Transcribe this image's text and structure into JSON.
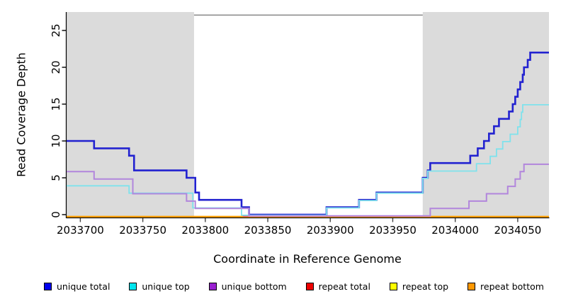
{
  "figure": {
    "y_axis_title": "Read Coverage Depth",
    "x_axis_title": "Coordinate in Reference Genome"
  },
  "chart_data": {
    "type": "line",
    "step": true,
    "title": "",
    "xlabel": "Coordinate in Reference Genome",
    "ylabel": "Read Coverage Depth",
    "x_range": [
      2033689,
      2034075
    ],
    "y_range": [
      0,
      27.5
    ],
    "x_ticks": [
      2033700,
      2033750,
      2033800,
      2033850,
      2033900,
      2033950,
      2034000,
      2034050
    ],
    "y_ticks": [
      0,
      5,
      10,
      15,
      20,
      25
    ],
    "grid": false,
    "legend_position": "bottom",
    "shaded_regions": [
      {
        "name": "left-shaded-region",
        "from": 2033689,
        "to": 2033791,
        "color": "#DBDBDB"
      },
      {
        "name": "right-shaded-region",
        "from": 2033974,
        "to": 2034075,
        "color": "#DBDBDB"
      }
    ],
    "top_border": {
      "from": 2033791,
      "to": 2033974,
      "color": "#8F8F8F"
    },
    "series": [
      {
        "name": "repeat top",
        "line_color": "#FFE800",
        "width": 1.8,
        "offset": 2.8,
        "extend": true,
        "points": [
          [
            2033689,
            0
          ],
          [
            2034075,
            0
          ]
        ]
      },
      {
        "name": "repeat bottom",
        "line_color": "#FF9802",
        "width": 2.2,
        "offset": 2.8,
        "extend": true,
        "points": [
          [
            2033689,
            0
          ],
          [
            2034075,
            0
          ]
        ]
      },
      {
        "name": "repeat total",
        "line_color": "#D44E78",
        "width": 1.8,
        "offset": 2.1,
        "extend": false,
        "points": [
          [
            2033830,
            0
          ],
          [
            2033980,
            0
          ]
        ]
      },
      {
        "name": "unique total",
        "line_color": "#2222D0",
        "width": 2.6,
        "offset": 0,
        "extend": true,
        "points": [
          [
            2033689,
            10
          ],
          [
            2033711,
            9
          ],
          [
            2033739,
            8
          ],
          [
            2033743,
            6
          ],
          [
            2033785,
            5
          ],
          [
            2033792,
            3
          ],
          [
            2033795,
            2
          ],
          [
            2033829,
            1
          ],
          [
            2033835,
            0
          ],
          [
            2033897,
            1
          ],
          [
            2033923,
            2
          ],
          [
            2033937,
            3
          ],
          [
            2033974,
            5
          ],
          [
            2033978,
            6
          ],
          [
            2033980,
            7
          ],
          [
            2034012,
            8
          ],
          [
            2034018,
            9
          ],
          [
            2034023,
            10
          ],
          [
            2034027,
            11
          ],
          [
            2034031,
            12
          ],
          [
            2034035,
            13
          ],
          [
            2034043,
            14
          ],
          [
            2034046,
            15
          ],
          [
            2034048,
            16
          ],
          [
            2034050,
            17
          ],
          [
            2034052,
            18
          ],
          [
            2034054,
            19
          ],
          [
            2034055,
            20
          ],
          [
            2034058,
            21
          ],
          [
            2034060,
            22
          ]
        ]
      },
      {
        "name": "unique top",
        "line_color": "#7FE2EC",
        "width": 1.8,
        "offset": 0.9,
        "extend": true,
        "points": [
          [
            2033689,
            4
          ],
          [
            2033739,
            3
          ],
          [
            2033790,
            1
          ],
          [
            2033829,
            0
          ],
          [
            2033897,
            1
          ],
          [
            2033923,
            2
          ],
          [
            2033937,
            3
          ],
          [
            2033974,
            5
          ],
          [
            2033978,
            6
          ],
          [
            2034017,
            7
          ],
          [
            2034028,
            8
          ],
          [
            2034033,
            9
          ],
          [
            2034038,
            10
          ],
          [
            2034044,
            11
          ],
          [
            2034050,
            12
          ],
          [
            2034052,
            13
          ],
          [
            2034053,
            14
          ],
          [
            2034054,
            15
          ]
        ]
      },
      {
        "name": "unique bottom",
        "line_color": "#B286DC",
        "width": 2.0,
        "offset": 1.7,
        "extend": true,
        "points": [
          [
            2033689,
            6
          ],
          [
            2033711,
            5
          ],
          [
            2033742,
            3
          ],
          [
            2033785,
            2
          ],
          [
            2033792,
            1
          ],
          [
            2033835,
            0
          ],
          [
            2033980,
            1
          ],
          [
            2034011,
            2
          ],
          [
            2034025,
            3
          ],
          [
            2034042,
            4
          ],
          [
            2034048,
            5
          ],
          [
            2034052,
            6
          ],
          [
            2034055,
            7
          ]
        ]
      }
    ],
    "legend": [
      {
        "label": "unique total",
        "color": "#0000EE"
      },
      {
        "label": "unique top",
        "color": "#00E5EE"
      },
      {
        "label": "unique bottom",
        "color": "#9920D0"
      },
      {
        "label": "repeat total",
        "color": "#EE0000"
      },
      {
        "label": "repeat top",
        "color": "#FFFF00"
      },
      {
        "label": "repeat bottom",
        "color": "#FF9802"
      }
    ]
  }
}
